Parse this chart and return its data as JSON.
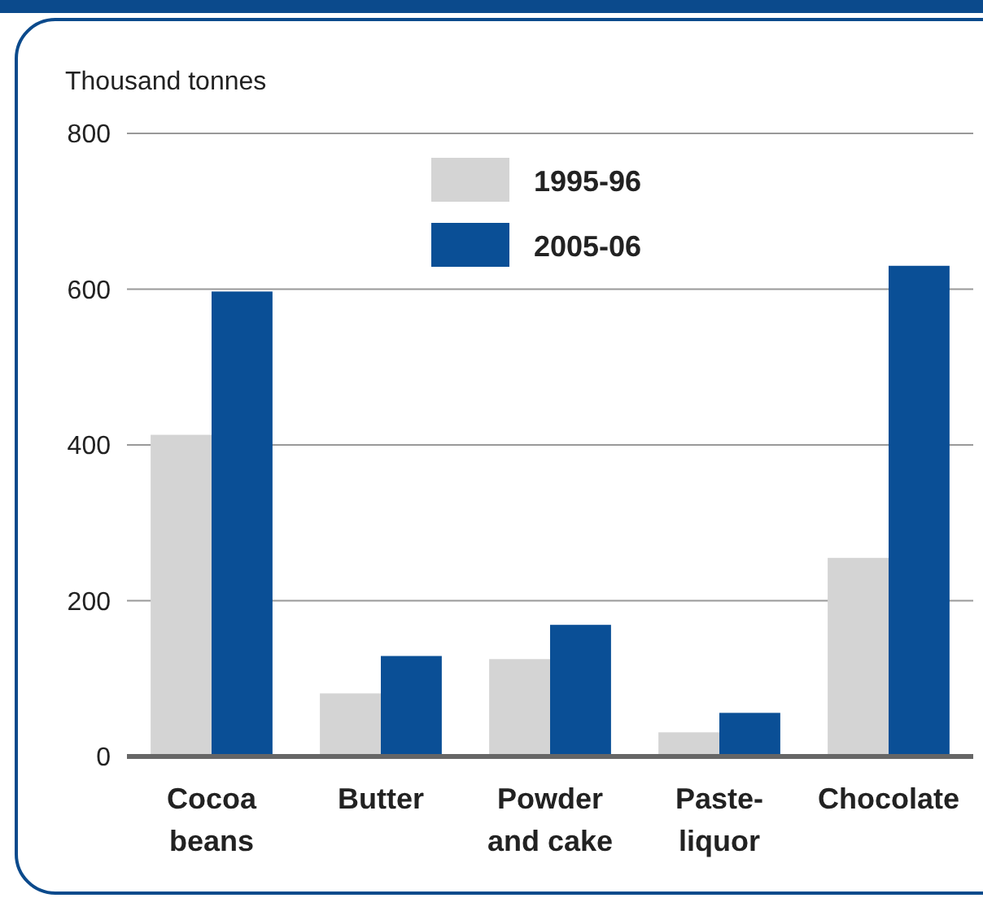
{
  "chart_data": {
    "type": "bar",
    "ylabel": "Thousand tonnes",
    "categories": [
      "Cocoa beans",
      "Butter",
      "Powder and cake",
      "Paste-liquor",
      "Chocolate"
    ],
    "series": [
      {
        "name": "1995-96",
        "color": "#d4d4d4",
        "values": [
          413,
          81,
          125,
          31,
          255
        ]
      },
      {
        "name": "2005-06",
        "color": "#0a4f96",
        "values": [
          597,
          129,
          169,
          56,
          630
        ]
      }
    ],
    "ylim": [
      0,
      800
    ],
    "yticks": [
      0,
      200,
      400,
      600,
      800
    ],
    "grid": "y",
    "legend": "top"
  }
}
